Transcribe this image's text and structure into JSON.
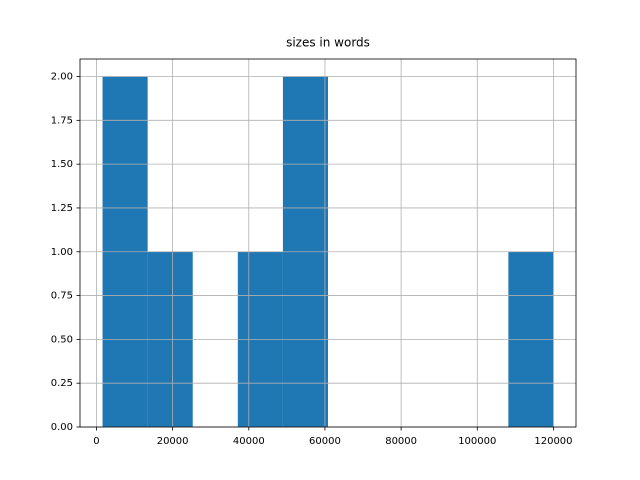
{
  "chart_data": {
    "type": "histogram",
    "title": "sizes in words",
    "bins": [
      1600,
      13440,
      25280,
      37120,
      48960,
      60800,
      72640,
      84480,
      96320,
      108160,
      120000
    ],
    "counts": [
      2,
      1,
      0,
      1,
      2,
      0,
      0,
      0,
      0,
      1
    ],
    "color": "#1f77b4",
    "xlim": [
      -4320,
      125920
    ],
    "xticks": [
      0,
      20000,
      40000,
      60000,
      80000,
      100000,
      120000
    ],
    "ylim": [
      0,
      2.1
    ],
    "yticks": [
      {
        "value": 0,
        "label": "0.00"
      },
      {
        "value": 0.25,
        "label": "0.25"
      },
      {
        "value": 0.5,
        "label": "0.50"
      },
      {
        "value": 0.75,
        "label": "0.75"
      },
      {
        "value": 1,
        "label": "1.00"
      },
      {
        "value": 1.25,
        "label": "1.25"
      },
      {
        "value": 1.5,
        "label": "1.50"
      },
      {
        "value": 1.75,
        "label": "1.75"
      },
      {
        "value": 2,
        "label": "2.00"
      }
    ],
    "grid": true
  }
}
